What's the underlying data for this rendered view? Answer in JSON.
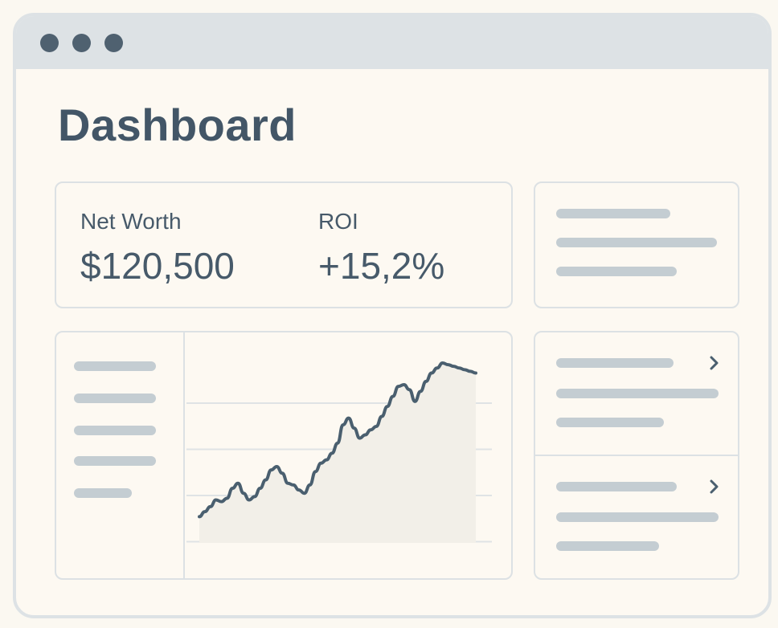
{
  "window": {
    "controls": [
      "close-dot",
      "minimize-dot",
      "maximize-dot"
    ],
    "control_color": "#4f6170",
    "titlebar_color": "#dde2e5"
  },
  "page": {
    "title": "Dashboard"
  },
  "stats": [
    {
      "label": "Net Worth",
      "value": "$120,500"
    },
    {
      "label": "ROI",
      "value": "+15,2%"
    }
  ],
  "list": {
    "items": [
      {
        "icon": "chevron-right-icon"
      },
      {
        "icon": "chevron-right-icon"
      }
    ]
  },
  "chart_data": {
    "type": "line",
    "title": "",
    "xlabel": "",
    "ylabel": "",
    "grid": true,
    "fill_under": true,
    "line_color": "#4a5f6f",
    "fill_color": "#f2efe8",
    "ylim": [
      0,
      100
    ],
    "x": [
      0,
      1,
      2,
      3,
      4,
      5,
      6,
      7,
      8,
      9,
      10,
      11,
      12,
      13,
      14,
      15,
      16,
      17,
      18,
      19,
      20,
      21,
      22,
      23,
      24,
      25,
      26,
      27,
      28,
      29,
      30,
      31,
      32,
      33,
      34,
      35,
      36,
      37,
      38,
      39,
      40,
      41,
      42,
      43,
      44,
      45,
      46,
      47,
      48,
      49,
      50
    ],
    "series": [
      {
        "values": [
          8,
          11,
          14,
          18,
          17,
          19,
          25,
          28,
          22,
          18,
          20,
          25,
          30,
          36,
          38,
          34,
          28,
          27,
          24,
          22,
          27,
          35,
          40,
          42,
          46,
          52,
          63,
          67,
          61,
          55,
          57,
          60,
          62,
          68,
          74,
          80,
          86,
          87,
          84,
          77,
          83,
          89,
          94,
          97,
          100,
          99,
          98,
          97,
          96,
          95,
          94
        ]
      }
    ]
  }
}
